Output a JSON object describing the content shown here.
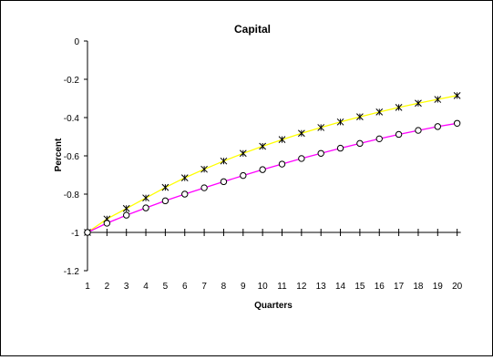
{
  "chart_data": {
    "type": "line",
    "title": "Capital",
    "xlabel": "Quarters",
    "ylabel": "Percent",
    "x": [
      1,
      2,
      3,
      4,
      5,
      6,
      7,
      8,
      9,
      10,
      11,
      12,
      13,
      14,
      15,
      16,
      17,
      18,
      19,
      20
    ],
    "xticks": [
      "1",
      "2",
      "3",
      "4",
      "5",
      "6",
      "7",
      "8",
      "9",
      "10",
      "11",
      "12",
      "13",
      "14",
      "15",
      "16",
      "17",
      "18",
      "19",
      "20"
    ],
    "ylim": [
      -1.2,
      0
    ],
    "yticks": [
      "0",
      "-0.2",
      "-0.4",
      "-0.6",
      "-0.8",
      "-1",
      "-1.2"
    ],
    "grid": false,
    "series": [
      {
        "color": "#ffff00",
        "marker": "asterisk",
        "values": [
          -1.0,
          -0.93,
          -0.875,
          -0.82,
          -0.765,
          -0.715,
          -0.67,
          -0.627,
          -0.587,
          -0.55,
          -0.515,
          -0.482,
          -0.452,
          -0.423,
          -0.396,
          -0.371,
          -0.347,
          -0.325,
          -0.305,
          -0.285
        ]
      },
      {
        "color": "#ff00ff",
        "marker": "circle",
        "values": [
          -1.0,
          -0.952,
          -0.91,
          -0.872,
          -0.835,
          -0.8,
          -0.767,
          -0.735,
          -0.703,
          -0.672,
          -0.643,
          -0.614,
          -0.587,
          -0.56,
          -0.535,
          -0.511,
          -0.488,
          -0.467,
          -0.447,
          -0.43
        ]
      }
    ]
  }
}
